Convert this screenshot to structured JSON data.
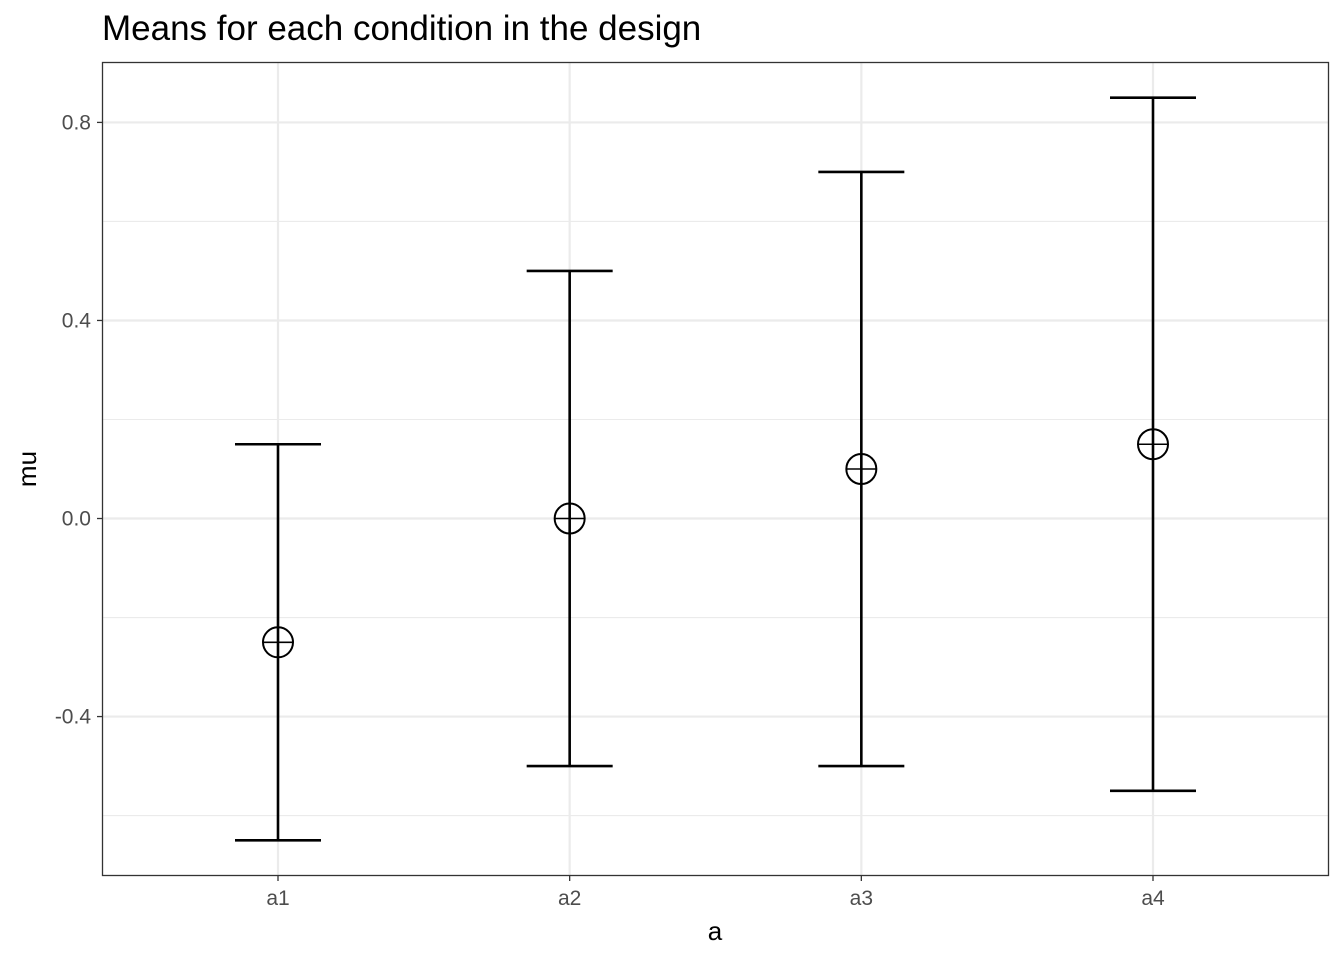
{
  "chart_data": {
    "type": "errorbar",
    "title": "Means for each condition in the design",
    "xlabel": "a",
    "ylabel": "mu",
    "categories": [
      "a1",
      "a2",
      "a3",
      "a4"
    ],
    "series": [
      {
        "values": [
          -0.25,
          0.0,
          0.1,
          0.15
        ],
        "lower": [
          -0.65,
          -0.5,
          -0.5,
          -0.55
        ],
        "upper": [
          0.15,
          0.5,
          0.7,
          0.85
        ]
      }
    ],
    "y_ticks": [
      -0.4,
      0.0,
      0.4,
      0.8
    ],
    "y_tick_labels": [
      "-0.4",
      "0.0",
      "0.4",
      "0.8"
    ],
    "ylim": [
      -0.72,
      0.92
    ],
    "grid": true,
    "marker": "circle-plus",
    "colors": {
      "line": "#000000",
      "grid": "#ebebeb",
      "border": "#333333",
      "tick_text": "#4d4d4d"
    }
  }
}
